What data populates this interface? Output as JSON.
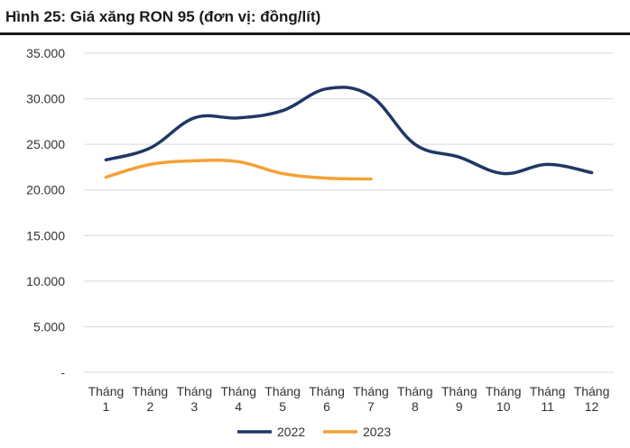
{
  "figure": {
    "title": "Hình 25: Giá xăng RON 95 (đơn vị: đồng/lít)"
  },
  "chart_data": {
    "type": "line",
    "title": "Hình 25: Giá xăng RON 95 (đơn vị: đồng/lít)",
    "categories": [
      [
        "Tháng",
        "1"
      ],
      [
        "Tháng",
        "2"
      ],
      [
        "Tháng",
        "3"
      ],
      [
        "Tháng",
        "4"
      ],
      [
        "Tháng",
        "5"
      ],
      [
        "Tháng",
        "6"
      ],
      [
        "Tháng",
        "7"
      ],
      [
        "Tháng",
        "8"
      ],
      [
        "Tháng",
        "9"
      ],
      [
        "Tháng",
        "10"
      ],
      [
        "Tháng",
        "11"
      ],
      [
        "Tháng",
        "12"
      ]
    ],
    "y_ticks": [
      {
        "value": 0,
        "label": "-"
      },
      {
        "value": 5000,
        "label": "5.000"
      },
      {
        "value": 10000,
        "label": "10.000"
      },
      {
        "value": 15000,
        "label": "15.000"
      },
      {
        "value": 20000,
        "label": "20.000"
      },
      {
        "value": 25000,
        "label": "25.000"
      },
      {
        "value": 30000,
        "label": "30.000"
      },
      {
        "value": 35000,
        "label": "35.000"
      }
    ],
    "ylim": [
      0,
      35000
    ],
    "grid": true,
    "legend_position": "bottom",
    "series": [
      {
        "name": "2022",
        "color": "#1f3864",
        "values": [
          23300,
          24600,
          27900,
          27900,
          28700,
          31100,
          30300,
          25000,
          23600,
          21800,
          22800,
          21900
        ]
      },
      {
        "name": "2023",
        "color": "#f4a236",
        "values": [
          21400,
          22800,
          23200,
          23100,
          21800,
          21300,
          21200,
          null,
          null,
          null,
          null,
          null
        ]
      }
    ]
  }
}
